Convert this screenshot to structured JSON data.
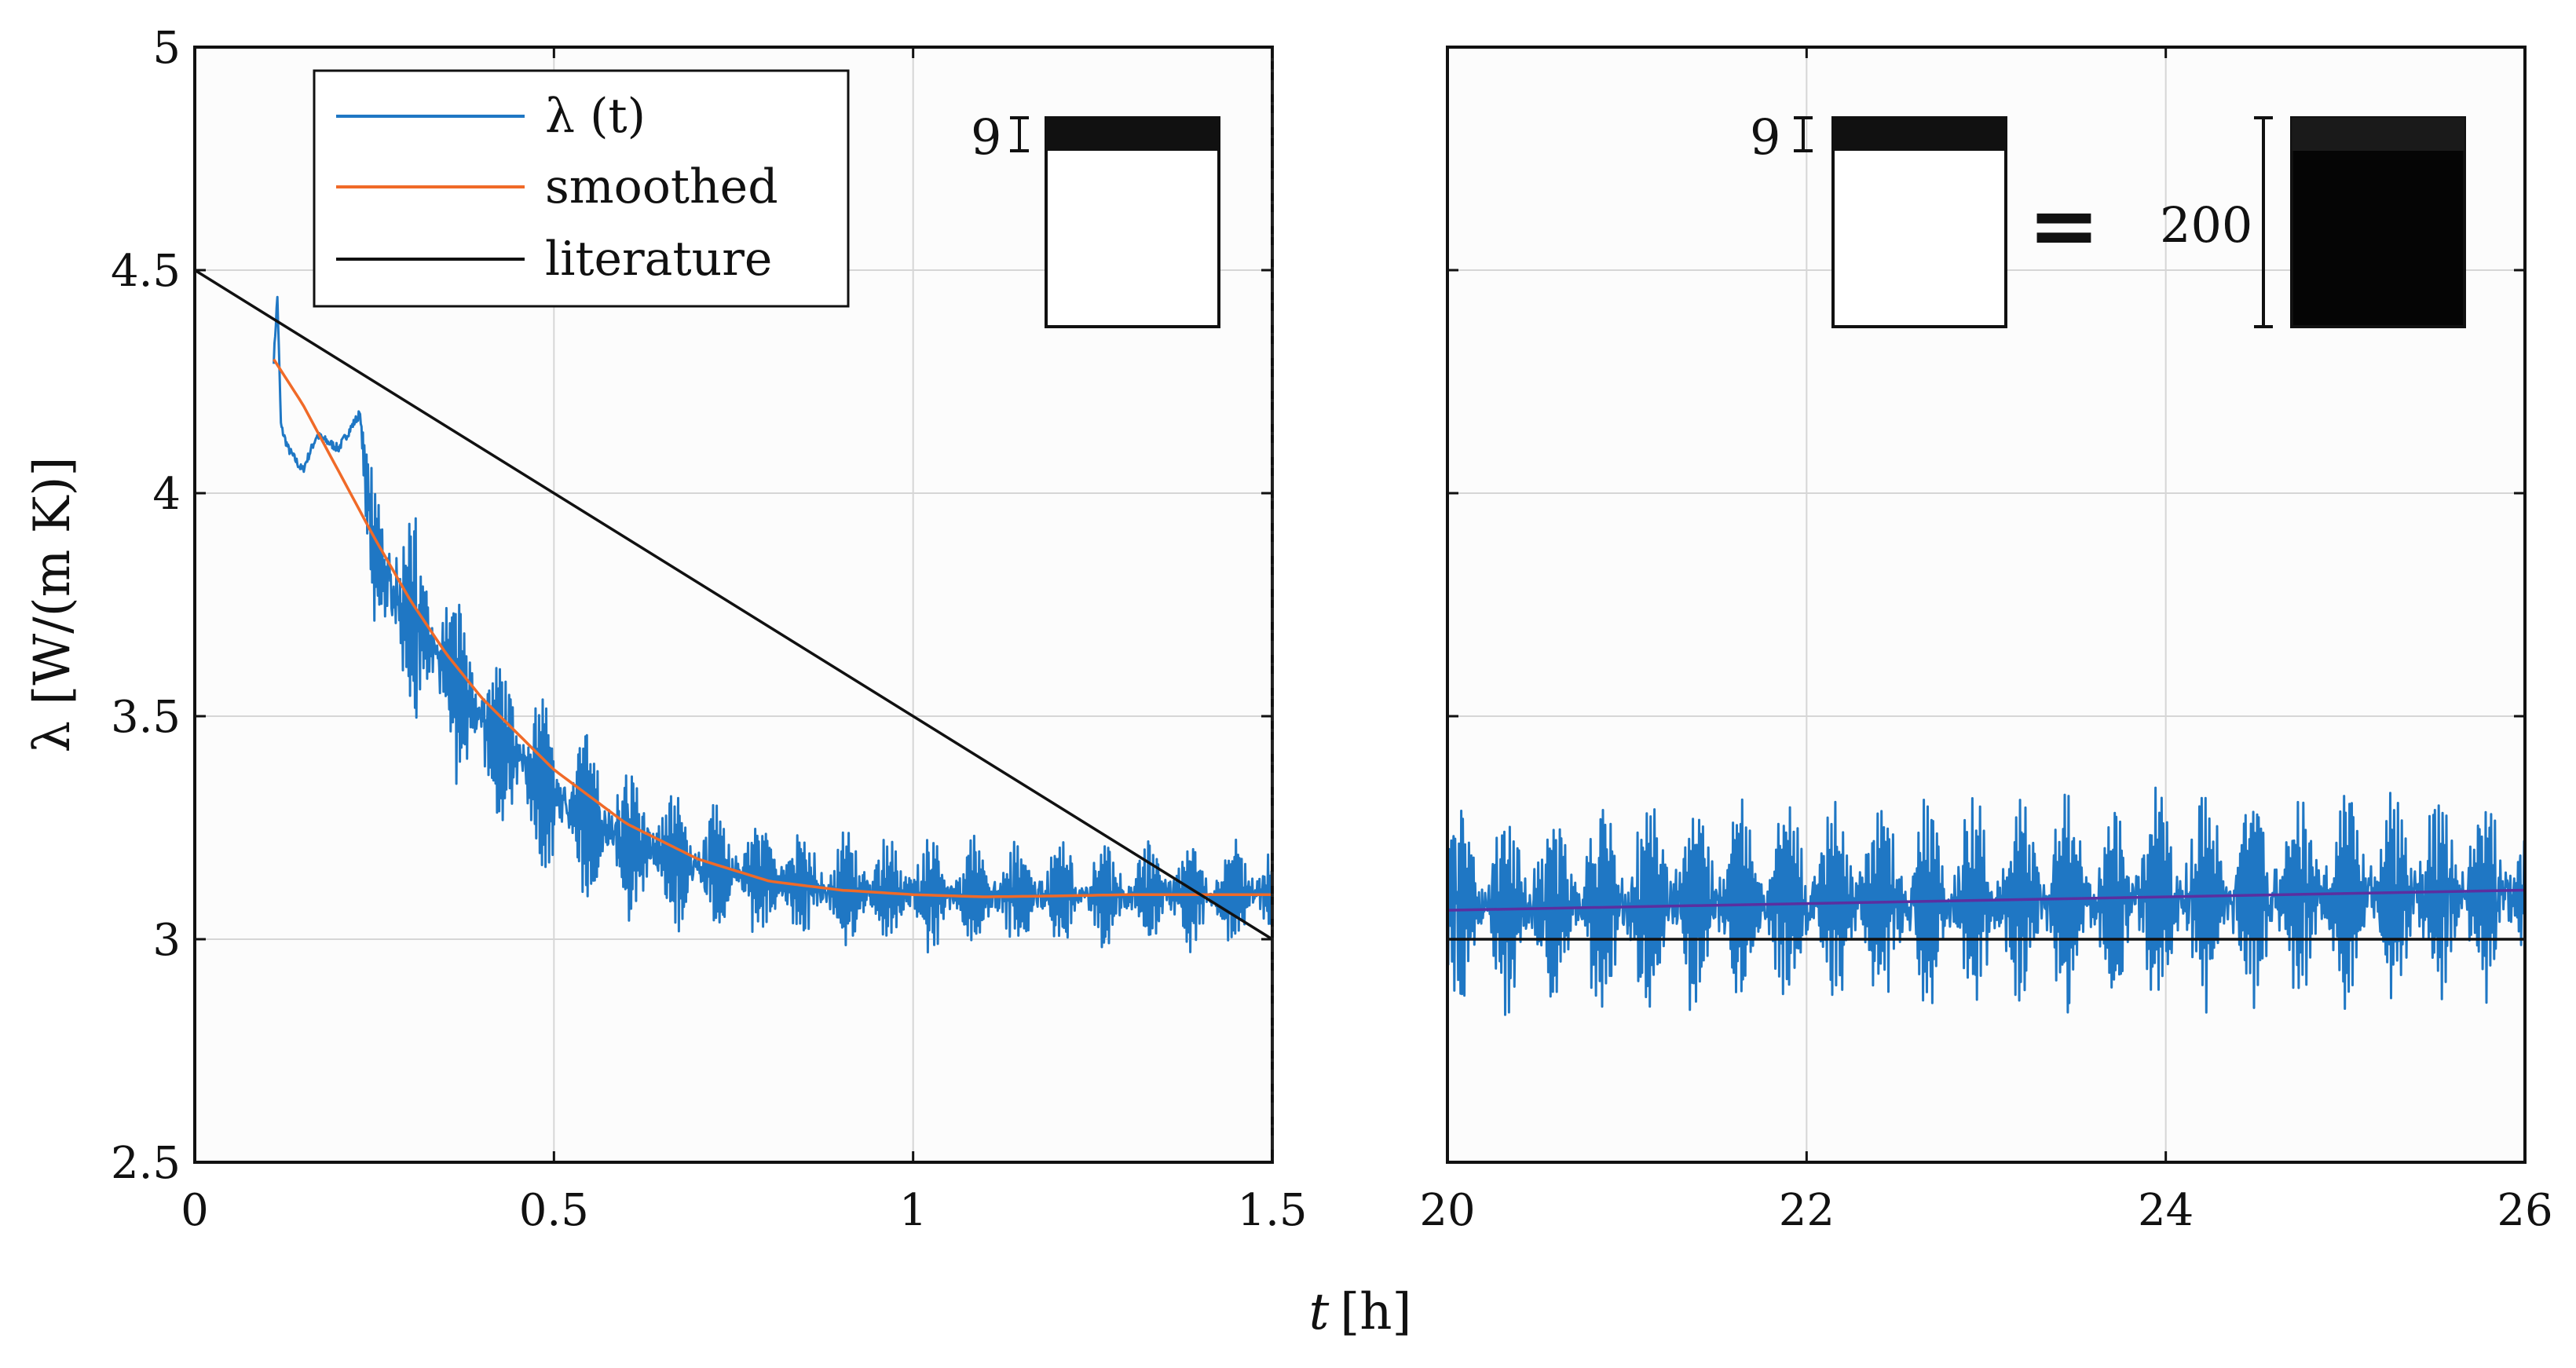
{
  "chart_data": [
    {
      "type": "line",
      "panel": "left",
      "xlim": [
        0,
        1.5
      ],
      "ylim": [
        2.5,
        5
      ],
      "xticks": [
        "0",
        "0.5",
        "1",
        "1.5"
      ],
      "yticks": [
        "2.5",
        "3",
        "3.5",
        "4",
        "4.5",
        "5"
      ],
      "ylabel": "λ [W/(m K)]",
      "grid": true,
      "legend": {
        "position": "top-left",
        "entries": [
          {
            "label": "λ (t)",
            "color": "#1f77c4"
          },
          {
            "label": "smoothed",
            "color": "#f06a28"
          },
          {
            "label": "literature",
            "color": "#111111"
          }
        ]
      },
      "series": [
        {
          "name": "λ (t)",
          "description": "noisy measured conductivity",
          "x": [
            0.11,
            0.115,
            0.12,
            0.13,
            0.15,
            0.17,
            0.2,
            0.23,
            0.24,
            0.25,
            0.3,
            0.35,
            0.4,
            0.5,
            0.6,
            0.7,
            0.8,
            0.9,
            1.0,
            1.1,
            1.2,
            1.3,
            1.4,
            1.5
          ],
          "y": [
            4.3,
            4.44,
            4.15,
            4.1,
            4.05,
            4.13,
            4.1,
            4.18,
            4.0,
            3.85,
            3.72,
            3.6,
            3.48,
            3.32,
            3.22,
            3.16,
            3.13,
            3.11,
            3.1,
            3.1,
            3.1,
            3.1,
            3.1,
            3.1
          ],
          "amplitude": [
            0,
            0,
            0,
            0,
            0,
            0,
            0,
            0,
            0.15,
            0.28,
            0.28,
            0.26,
            0.24,
            0.22,
            0.2,
            0.18,
            0.16,
            0.16,
            0.15,
            0.15,
            0.14,
            0.14,
            0.14,
            0.14
          ]
        },
        {
          "name": "smoothed",
          "x": [
            0.11,
            0.15,
            0.2,
            0.25,
            0.3,
            0.35,
            0.4,
            0.5,
            0.6,
            0.7,
            0.8,
            0.9,
            1.0,
            1.1,
            1.2,
            1.3,
            1.4,
            1.5
          ],
          "y": [
            4.3,
            4.2,
            4.05,
            3.9,
            3.76,
            3.64,
            3.54,
            3.38,
            3.26,
            3.18,
            3.13,
            3.11,
            3.1,
            3.095,
            3.097,
            3.1,
            3.1,
            3.1
          ]
        },
        {
          "name": "literature",
          "x": [
            0,
            1.5
          ],
          "y": [
            4.5,
            3.0
          ]
        }
      ],
      "inset": {
        "label": "9"
      }
    },
    {
      "type": "line",
      "panel": "right",
      "xlim": [
        20,
        26
      ],
      "ylim": [
        2.5,
        5
      ],
      "xticks": [
        "20",
        "22",
        "24",
        "26"
      ],
      "grid": true,
      "series": [
        {
          "name": "λ (t)",
          "description": "noisy measured conductivity around 3.1",
          "x": [
            20,
            26
          ],
          "y": [
            3.07,
            3.1
          ],
          "amplitude": [
            0.28,
            0.28
          ]
        },
        {
          "name": "smoothed",
          "color": "#5b2fa0",
          "x": [
            20,
            26
          ],
          "y": [
            3.065,
            3.11
          ]
        },
        {
          "name": "literature",
          "x": [
            20,
            26
          ],
          "y": [
            3.0,
            3.0
          ]
        }
      ],
      "insets": [
        {
          "label": "9"
        },
        {
          "equals": "="
        },
        {
          "label": "200"
        }
      ]
    }
  ],
  "shared_xlabel": {
    "var": "t",
    "unit": "[h]"
  }
}
